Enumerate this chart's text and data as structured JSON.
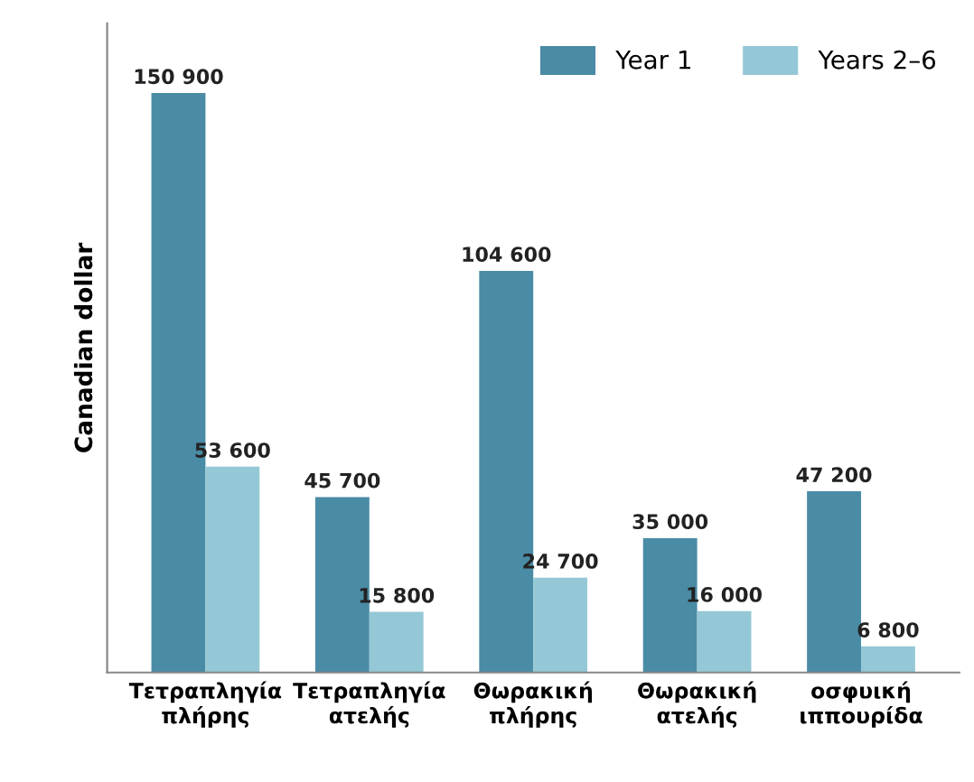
{
  "chart_data": {
    "type": "bar",
    "ylabel": "Canadian dollar",
    "categories": [
      "Τετραπληγία\nπλήρης",
      "Τετραπληγία\nατελής",
      "Θωρακική\nπλήρης",
      "Θωρακική\nατελής",
      "οσφυική\nιππουρίδα"
    ],
    "series": [
      {
        "name": "Year 1",
        "color": "#4a8ba5",
        "values": [
          150900,
          45700,
          104600,
          35000,
          47200
        ],
        "value_labels": [
          "150 900",
          "45 700",
          "104 600",
          "35 000",
          "47 200"
        ]
      },
      {
        "name": "Years 2–6",
        "color": "#95c8d6",
        "values": [
          53600,
          15800,
          24700,
          16000,
          6800
        ],
        "value_labels": [
          "53 600",
          "15 800",
          "24 700",
          "16 000",
          "6 800"
        ]
      }
    ],
    "legend": "top right",
    "grid": false
  }
}
